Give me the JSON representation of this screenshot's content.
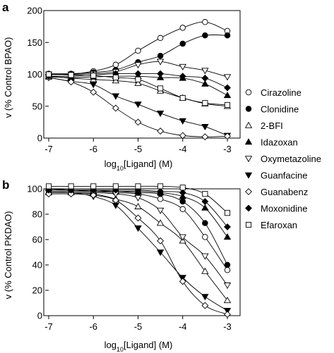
{
  "chart_data": [
    {
      "panel": "a",
      "type": "line",
      "ylabel": "v (% Control BPAO)",
      "xlabel_base": "log",
      "xlabel_sub": "10",
      "xlabel_rest": "[Ligand] (M)",
      "x": [
        -7,
        -6.5,
        -6,
        -5.5,
        -5,
        -4.5,
        -4,
        -3.5,
        -3
      ],
      "xlim": [
        -7,
        -3
      ],
      "xticks": [
        "-7",
        "-6",
        "-5",
        "-4",
        "-3"
      ],
      "ylim": [
        0,
        200
      ],
      "yticks": [
        "0",
        "50",
        "100",
        "150",
        "200"
      ],
      "series": [
        {
          "name": "Cirazoline",
          "marker": "circle-open",
          "values": [
            100,
            100,
            105,
            115,
            137,
            157,
            173,
            182,
            168
          ]
        },
        {
          "name": "Clonidine",
          "marker": "circle-filled",
          "values": [
            101,
            101,
            103,
            107,
            119,
            129,
            148,
            161,
            161
          ]
        },
        {
          "name": "2-BFI",
          "marker": "triangle-up-open",
          "values": [
            97,
            94,
            92,
            90,
            86,
            74,
            63,
            54,
            50
          ]
        },
        {
          "name": "Idazoxan",
          "marker": "triangle-up-filled",
          "values": [
            96,
            95,
            96,
            97,
            97,
            95,
            94,
            85,
            67
          ]
        },
        {
          "name": "Oxymetazoline",
          "marker": "triangle-down-open",
          "values": [
            100,
            100,
            101,
            104,
            115,
            120,
            112,
            106,
            96
          ]
        },
        {
          "name": "Guanfacine",
          "marker": "triangle-down-filled",
          "values": [
            95,
            89,
            84,
            66,
            53,
            39,
            27,
            18,
            4
          ]
        },
        {
          "name": "Guanabenz",
          "marker": "diamond-open",
          "values": [
            95,
            88,
            72,
            47,
            25,
            11,
            4,
            2,
            3
          ]
        },
        {
          "name": "Moxonidine",
          "marker": "diamond-filled",
          "values": [
            97,
            97,
            99,
            101,
            101,
            101,
            97,
            94,
            79
          ]
        },
        {
          "name": "Efaroxan",
          "marker": "square-open",
          "values": [
            100,
            99,
            98,
            95,
            92,
            78,
            63,
            55,
            52
          ]
        }
      ]
    },
    {
      "panel": "b",
      "type": "line",
      "ylabel": "v (% Control PKDAO)",
      "xlabel_base": "log",
      "xlabel_sub": "10",
      "xlabel_rest": "[Ligand] (M)",
      "x": [
        -7,
        -6.5,
        -6,
        -5.5,
        -5,
        -4.5,
        -4,
        -3.5,
        -3
      ],
      "xlim": [
        -7,
        -3
      ],
      "xticks": [
        "-7",
        "-6",
        "-5",
        "-4",
        "-3"
      ],
      "ylim": [
        0,
        100
      ],
      "yticks": [
        "0",
        "20",
        "40",
        "60",
        "80",
        "100"
      ],
      "series": [
        {
          "name": "Cirazoline",
          "marker": "circle-open",
          "values": [
            100,
            99,
            98,
            97,
            96,
            92,
            84,
            62,
            36
          ]
        },
        {
          "name": "Clonidine",
          "marker": "circle-filled",
          "values": [
            100,
            99,
            99,
            98,
            97,
            96,
            90,
            73,
            40
          ]
        },
        {
          "name": "2-BFI",
          "marker": "triangle-up-open",
          "values": [
            97,
            97,
            96,
            92,
            86,
            73,
            59,
            35,
            12
          ]
        },
        {
          "name": "Idazoxan",
          "marker": "triangle-up-filled",
          "values": [
            98,
            98,
            98,
            98,
            98,
            97,
            94,
            85,
            62
          ]
        },
        {
          "name": "Oxymetazoline",
          "marker": "triangle-down-open",
          "values": [
            97,
            97,
            97,
            96,
            93,
            83,
            62,
            47,
            24
          ]
        },
        {
          "name": "Guanfacine",
          "marker": "triangle-down-filled",
          "values": [
            97,
            97,
            94,
            87,
            69,
            50,
            30,
            15,
            4
          ]
        },
        {
          "name": "Guanabenz",
          "marker": "diamond-open",
          "values": [
            96,
            96,
            95,
            91,
            77,
            59,
            27,
            8,
            1
          ]
        },
        {
          "name": "Moxonidine",
          "marker": "diamond-filled",
          "values": [
            99,
            99,
            99,
            99,
            99,
            98,
            97,
            90,
            70
          ]
        },
        {
          "name": "Efaroxan",
          "marker": "square-open",
          "values": [
            102,
            102,
            102,
            102,
            102,
            102,
            101,
            96,
            81
          ]
        }
      ]
    }
  ]
}
